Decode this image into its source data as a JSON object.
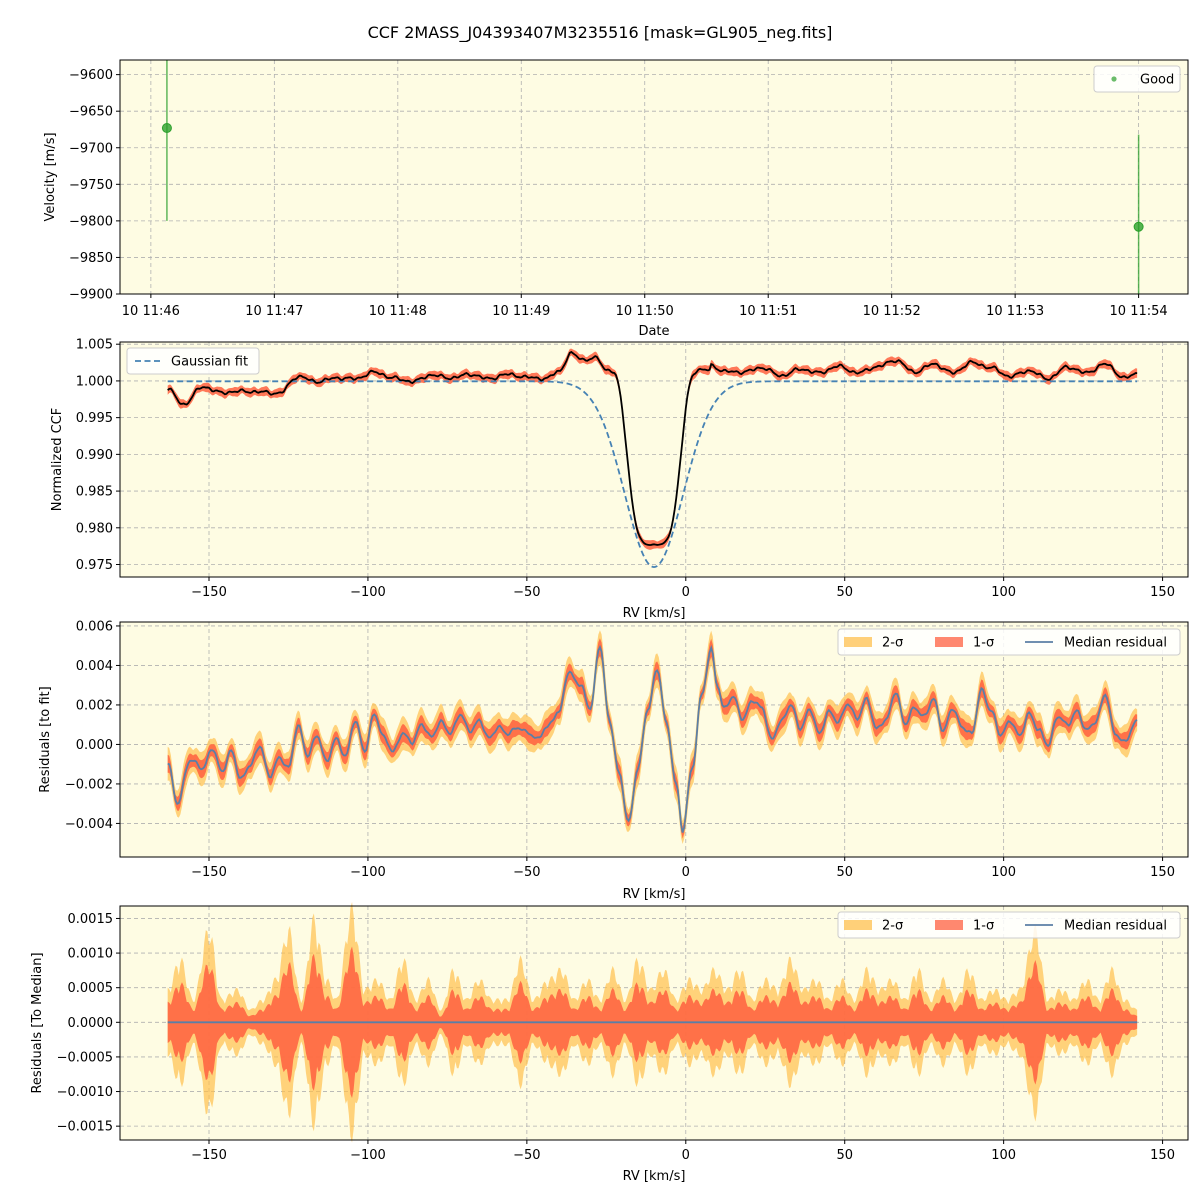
{
  "figure": {
    "title": "CCF 2MASS_J04393407M3235516 [mask=GL905_neg.fits]"
  },
  "colors": {
    "background": "#fefce3",
    "good": "#2ca02c",
    "gaussian": "#4682b4",
    "ccf": "#000000",
    "band2": "#ffc04d",
    "band1": "#ff6040",
    "median": "#5b7fa6"
  },
  "chart_data": [
    {
      "type": "scatter",
      "xlabel": "Date",
      "ylabel": "Velocity [m/s]",
      "x_ticks": [
        "10 11:46",
        "10 11:47",
        "10 11:48",
        "10 11:49",
        "10 11:50",
        "10 11:51",
        "10 11:52",
        "10 11:53",
        "10 11:54"
      ],
      "x_tick_minutes": [
        0,
        1,
        2,
        3,
        4,
        5,
        6,
        7,
        8
      ],
      "xlim_minutes": [
        -0.25,
        8.4
      ],
      "ylim": [
        -9900,
        -9580
      ],
      "y_ticks": [
        -9600,
        -9650,
        -9700,
        -9750,
        -9800,
        -9850,
        -9900
      ],
      "grid": true,
      "legend": {
        "placement": "top-right",
        "entries": [
          "Good"
        ]
      },
      "series": [
        {
          "name": "Good",
          "points": [
            {
              "t_minutes": 0.13,
              "y": -9673,
              "err_low": -9800,
              "err_high": -9550
            },
            {
              "t_minutes": 8.0,
              "y": -9808,
              "err_low": -9950,
              "err_high": -9682
            }
          ]
        }
      ]
    },
    {
      "type": "line",
      "xlabel": "RV [km/s]",
      "ylabel": "Normalized CCF",
      "xlim": [
        -178,
        158
      ],
      "ylim": [
        0.9733,
        1.0053
      ],
      "x_ticks": [
        -150,
        -100,
        -50,
        0,
        50,
        100,
        150
      ],
      "y_ticks": [
        1.005,
        1.0,
        0.995,
        0.99,
        0.985,
        0.98,
        0.975
      ],
      "grid": true,
      "legend": {
        "placement": "top-left",
        "entries": [
          "Gaussian fit"
        ]
      },
      "gaussian_fit": {
        "name": "Gaussian fit",
        "baseline": 0.99995,
        "depth": 0.0253,
        "center": -10.0,
        "sigma": 9.2
      },
      "ccf": {
        "baseline_points": [
          [
            -163,
            0.9989
          ],
          [
            -158,
            0.9968
          ],
          [
            -152,
            0.9992
          ],
          [
            -146,
            0.9984
          ],
          [
            -140,
            0.9986
          ],
          [
            -134,
            0.9985
          ],
          [
            -128,
            0.9983
          ],
          [
            -122,
            1.0006
          ],
          [
            -116,
            0.9999
          ],
          [
            -110,
            1.0004
          ],
          [
            -104,
            1.0003
          ],
          [
            -98,
            1.0012
          ],
          [
            -92,
            1.0004
          ],
          [
            -86,
            0.9999
          ],
          [
            -80,
            1.0008
          ],
          [
            -74,
            1.0004
          ],
          [
            -68,
            1.0009
          ],
          [
            -62,
            1.0003
          ],
          [
            -56,
            1.0009
          ],
          [
            -50,
            1.0005
          ],
          [
            -44,
            1.0003
          ],
          [
            -40,
            1.0013
          ],
          [
            -36,
            1.0037
          ],
          [
            -32,
            1.0029
          ],
          [
            -28,
            1.0031
          ],
          [
            -25,
            1.0015
          ],
          [
            8,
            1.0021
          ],
          [
            12,
            1.0013
          ],
          [
            18,
            1.0012
          ],
          [
            24,
            1.0018
          ],
          [
            30,
            1.0007
          ],
          [
            36,
            1.0016
          ],
          [
            42,
            1.0011
          ],
          [
            48,
            1.002
          ],
          [
            54,
            1.0011
          ],
          [
            60,
            1.0019
          ],
          [
            66,
            1.0028
          ],
          [
            72,
            1.0012
          ],
          [
            78,
            1.0023
          ],
          [
            84,
            1.0011
          ],
          [
            90,
            1.0025
          ],
          [
            96,
            1.0018
          ],
          [
            102,
            1.0006
          ],
          [
            108,
            1.0014
          ],
          [
            114,
            1.0003
          ],
          [
            120,
            1.0019
          ],
          [
            126,
            1.0011
          ],
          [
            132,
            1.0023
          ],
          [
            138,
            1.0004
          ],
          [
            142,
            1.001
          ]
        ],
        "dip": {
          "center": -10.0,
          "sigma": 7.8,
          "depth": 0.0238,
          "flat_power": 2.2,
          "baseline": 1.0015
        }
      }
    },
    {
      "type": "area",
      "xlabel": "RV [km/s]",
      "ylabel": "Residuals [to fit]",
      "xlim": [
        -178,
        158
      ],
      "ylim": [
        -0.0057,
        0.0062
      ],
      "x_ticks": [
        -150,
        -100,
        -50,
        0,
        50,
        100,
        150
      ],
      "y_ticks": [
        0.006,
        0.004,
        0.002,
        0.0,
        -0.002,
        -0.004
      ],
      "y_tick_labels": [
        "0.006",
        "0.004",
        "0.002",
        "0.000",
        "−0.002",
        "−0.004"
      ],
      "grid": true,
      "legend": {
        "placement": "top-right",
        "entries": [
          "2-σ",
          "1-σ",
          "Median residual"
        ]
      },
      "median_points": [
        [
          -163,
          -0.0009
        ],
        [
          -160,
          -0.003
        ],
        [
          -156,
          -0.0008
        ],
        [
          -152,
          -0.0012
        ],
        [
          -149,
          -0.0002
        ],
        [
          -146,
          -0.0014
        ],
        [
          -143,
          -0.0003
        ],
        [
          -140,
          -0.0018
        ],
        [
          -137,
          -0.001
        ],
        [
          -134,
          -0.0001
        ],
        [
          -131,
          -0.0016
        ],
        [
          -128,
          -0.0007
        ],
        [
          -125,
          -0.0012
        ],
        [
          -122,
          0.001
        ],
        [
          -119,
          -0.0006
        ],
        [
          -116,
          0.0005
        ],
        [
          -113,
          -0.0009
        ],
        [
          -110,
          0.0003
        ],
        [
          -107,
          -0.0006
        ],
        [
          -104,
          0.0012
        ],
        [
          -101,
          -0.0003
        ],
        [
          -98,
          0.0015
        ],
        [
          -95,
          0.0004
        ],
        [
          -92,
          -0.0004
        ],
        [
          -89,
          0.0006
        ],
        [
          -86,
          0.0001
        ],
        [
          -83,
          0.001
        ],
        [
          -80,
          0.0004
        ],
        [
          -77,
          0.0011
        ],
        [
          -74,
          0.0006
        ],
        [
          -71,
          0.0015
        ],
        [
          -68,
          0.0007
        ],
        [
          -65,
          0.0012
        ],
        [
          -62,
          0.0003
        ],
        [
          -59,
          0.0009
        ],
        [
          -56,
          0.0005
        ],
        [
          -53,
          0.0009
        ],
        [
          -50,
          0.0006
        ],
        [
          -47,
          0.0003
        ],
        [
          -44,
          0.0008
        ],
        [
          -40,
          0.0016
        ],
        [
          -37,
          0.0036
        ],
        [
          -33,
          0.003
        ],
        [
          -30,
          0.0018
        ],
        [
          -27,
          0.005
        ],
        [
          -24,
          0.0012
        ],
        [
          -21,
          -0.0015
        ],
        [
          -18,
          -0.0039
        ],
        [
          -15,
          -0.0012
        ],
        [
          -12,
          0.0018
        ],
        [
          -9,
          0.0038
        ],
        [
          -6,
          0.001
        ],
        [
          -3,
          -0.002
        ],
        [
          -1,
          -0.0044
        ],
        [
          2,
          -0.0012
        ],
        [
          5,
          0.0025
        ],
        [
          8,
          0.0048
        ],
        [
          10,
          0.003
        ],
        [
          12,
          0.0018
        ],
        [
          15,
          0.0024
        ],
        [
          18,
          0.0013
        ],
        [
          21,
          0.0022
        ],
        [
          24,
          0.0019
        ],
        [
          27,
          0.0002
        ],
        [
          30,
          0.0012
        ],
        [
          33,
          0.002
        ],
        [
          36,
          0.0008
        ],
        [
          39,
          0.0018
        ],
        [
          42,
          0.0005
        ],
        [
          45,
          0.0017
        ],
        [
          48,
          0.0011
        ],
        [
          51,
          0.0021
        ],
        [
          54,
          0.0013
        ],
        [
          57,
          0.0023
        ],
        [
          60,
          0.0008
        ],
        [
          63,
          0.0012
        ],
        [
          66,
          0.0027
        ],
        [
          69,
          0.001
        ],
        [
          72,
          0.0019
        ],
        [
          75,
          0.0014
        ],
        [
          78,
          0.0023
        ],
        [
          81,
          0.0007
        ],
        [
          84,
          0.0018
        ],
        [
          87,
          0.0009
        ],
        [
          90,
          0.0005
        ],
        [
          93,
          0.0028
        ],
        [
          96,
          0.0017
        ],
        [
          99,
          0.0005
        ],
        [
          102,
          0.0012
        ],
        [
          105,
          0.0004
        ],
        [
          108,
          0.0016
        ],
        [
          111,
          0.0007
        ],
        [
          114,
          0.0
        ],
        [
          117,
          0.0014
        ],
        [
          120,
          0.001
        ],
        [
          123,
          0.0017
        ],
        [
          126,
          0.0007
        ],
        [
          129,
          0.0012
        ],
        [
          132,
          0.0025
        ],
        [
          135,
          0.0006
        ],
        [
          138,
          0.0001
        ],
        [
          142,
          0.0012
        ]
      ]
    },
    {
      "type": "area",
      "xlabel": "RV [km/s]",
      "ylabel": "Residuals [To Median]",
      "xlim": [
        -178,
        158
      ],
      "ylim": [
        -0.0017,
        0.00168
      ],
      "x_ticks": [
        -150,
        -100,
        -50,
        0,
        50,
        100,
        150
      ],
      "y_ticks": [
        0.0015,
        0.001,
        0.0005,
        0.0,
        -0.0005,
        -0.001,
        -0.0015
      ],
      "y_tick_labels": [
        "0.0015",
        "0.0010",
        "0.0005",
        "0.0000",
        "−0.0005",
        "−0.0010",
        "−0.0015"
      ],
      "grid": true,
      "legend": {
        "placement": "top-right",
        "entries": [
          "2-σ",
          "1-σ",
          "Median residual"
        ]
      },
      "sigma1_envelope": [
        [
          -163,
          0.0003
        ],
        [
          -159,
          0.0006
        ],
        [
          -155,
          0.0002
        ],
        [
          -150,
          0.0009
        ],
        [
          -146,
          0.0002
        ],
        [
          -141,
          0.0003
        ],
        [
          -137,
          0.0001
        ],
        [
          -133,
          0.0002
        ],
        [
          -129,
          0.0004
        ],
        [
          -125,
          0.0009
        ],
        [
          -121,
          0.0002
        ],
        [
          -117,
          0.001
        ],
        [
          -113,
          0.0004
        ],
        [
          -110,
          0.0002
        ],
        [
          -105,
          0.0011
        ],
        [
          -101,
          0.0003
        ],
        [
          -97,
          0.0004
        ],
        [
          -93,
          0.0002
        ],
        [
          -89,
          0.0006
        ],
        [
          -85,
          0.0002
        ],
        [
          -81,
          0.0004
        ],
        [
          -77,
          0.0001
        ],
        [
          -73,
          0.0005
        ],
        [
          -69,
          0.0002
        ],
        [
          -65,
          0.0004
        ],
        [
          -61,
          0.0002
        ],
        [
          -56,
          0.0002
        ],
        [
          -52,
          0.0006
        ],
        [
          -48,
          0.0002
        ],
        [
          -43,
          0.0004
        ],
        [
          -39,
          0.0005
        ],
        [
          -35,
          0.0002
        ],
        [
          -31,
          0.0004
        ],
        [
          -27,
          0.0002
        ],
        [
          -23,
          0.0005
        ],
        [
          -19,
          0.0002
        ],
        [
          -15,
          0.0006
        ],
        [
          -11,
          0.0003
        ],
        [
          -7,
          0.0005
        ],
        [
          -3,
          0.0002
        ],
        [
          1,
          0.0004
        ],
        [
          5,
          0.0003
        ],
        [
          9,
          0.0005
        ],
        [
          13,
          0.0003
        ],
        [
          17,
          0.0005
        ],
        [
          21,
          0.0002
        ],
        [
          25,
          0.0004
        ],
        [
          29,
          0.0003
        ],
        [
          33,
          0.0006
        ],
        [
          37,
          0.0003
        ],
        [
          41,
          0.0004
        ],
        [
          45,
          0.0002
        ],
        [
          49,
          0.0004
        ],
        [
          53,
          0.0002
        ],
        [
          57,
          0.0005
        ],
        [
          61,
          0.0003
        ],
        [
          65,
          0.0004
        ],
        [
          69,
          0.0002
        ],
        [
          73,
          0.0005
        ],
        [
          77,
          0.0002
        ],
        [
          81,
          0.0004
        ],
        [
          85,
          0.0002
        ],
        [
          89,
          0.0005
        ],
        [
          93,
          0.0002
        ],
        [
          97,
          0.0003
        ],
        [
          101,
          0.0002
        ],
        [
          105,
          0.0003
        ],
        [
          110,
          0.0009
        ],
        [
          114,
          0.0002
        ],
        [
          118,
          0.0003
        ],
        [
          122,
          0.0002
        ],
        [
          126,
          0.0004
        ],
        [
          130,
          0.0002
        ],
        [
          134,
          0.0005
        ],
        [
          138,
          0.0002
        ],
        [
          142,
          0.0001
        ]
      ]
    }
  ]
}
